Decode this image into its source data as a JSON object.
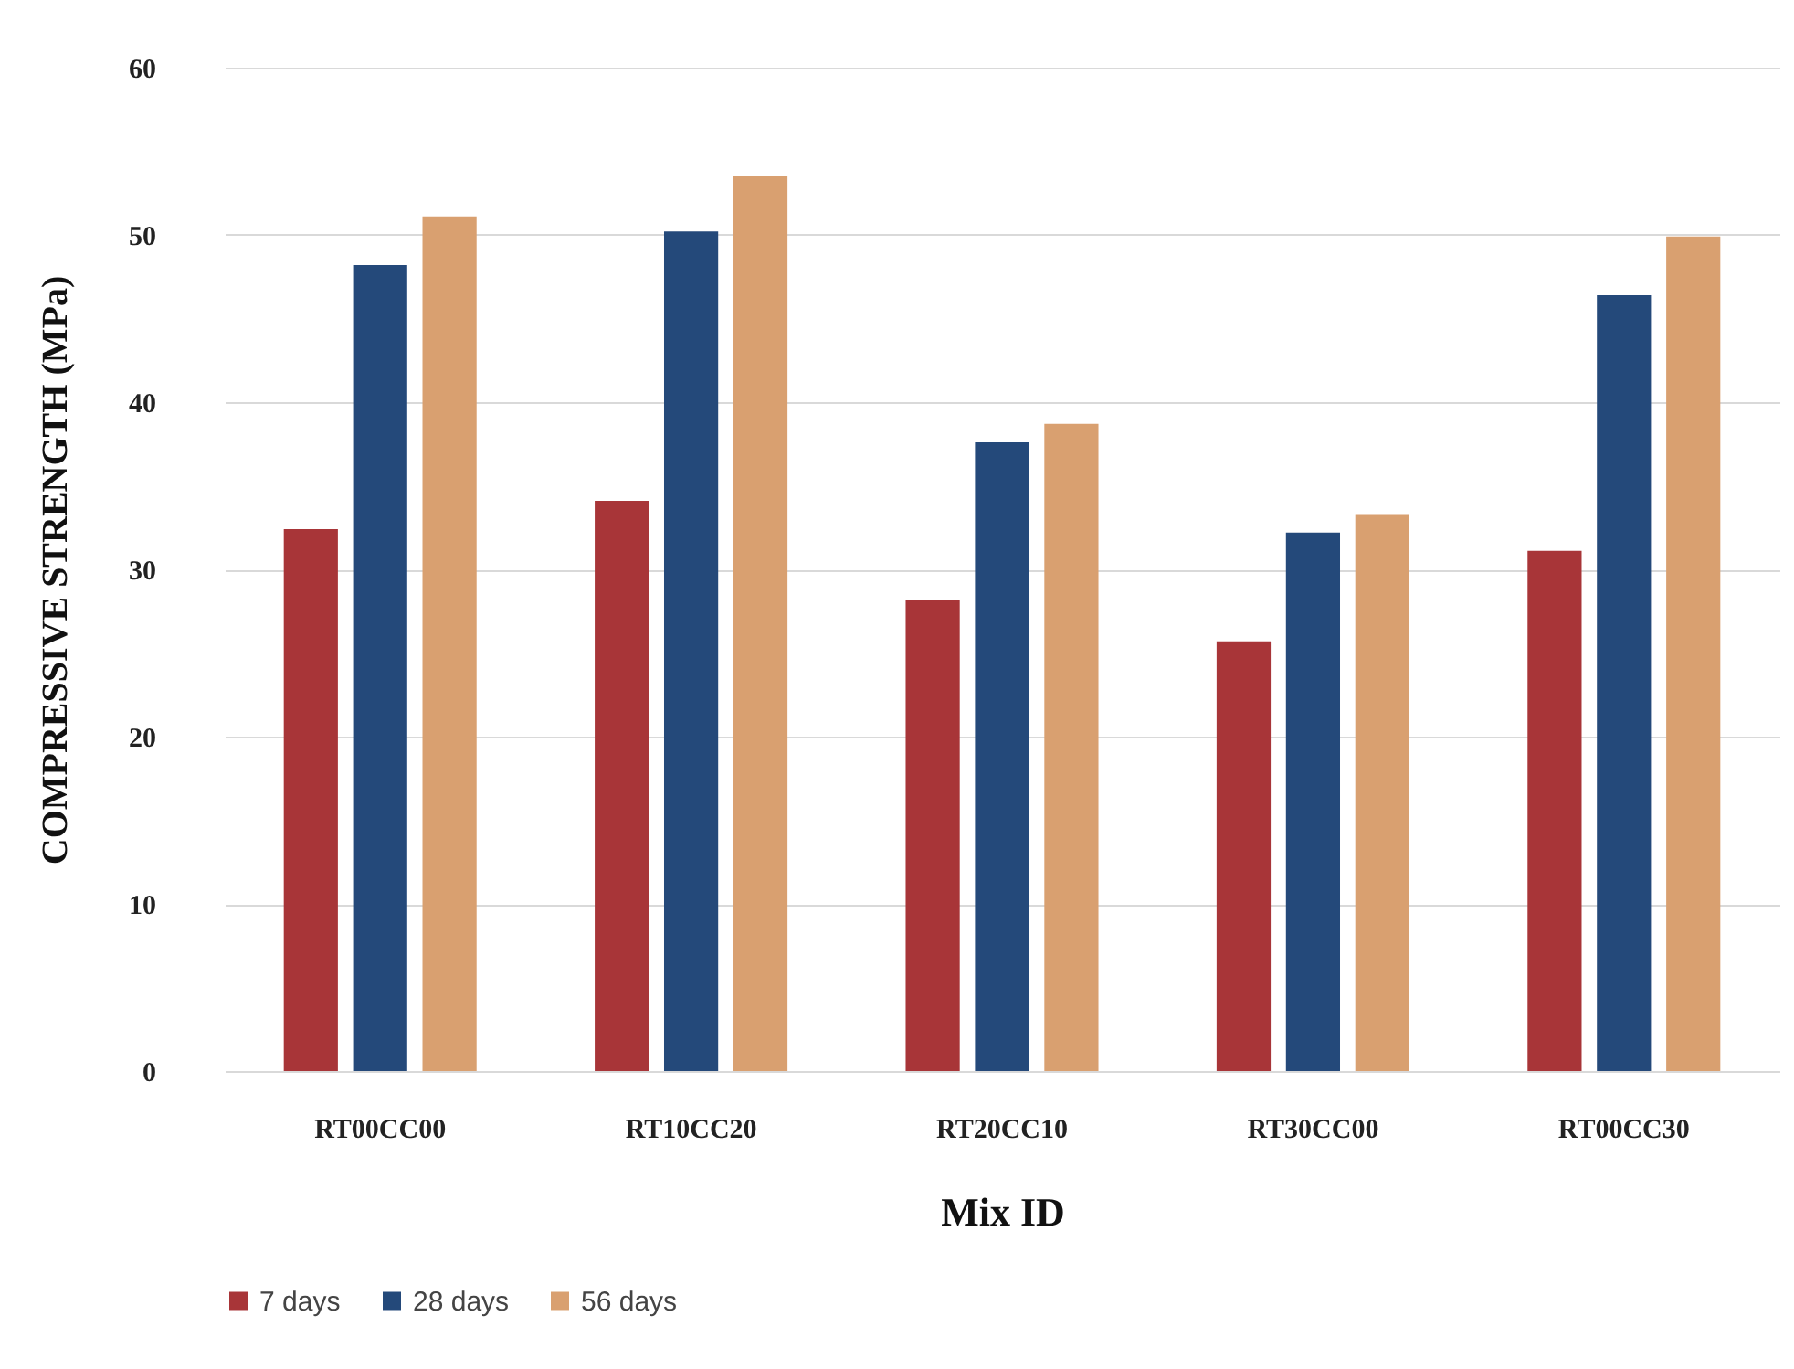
{
  "chart_data": {
    "type": "bar",
    "xlabel": "Mix ID",
    "ylabel": "COMPRESSIVE STRENGTH (MPa)",
    "categories": [
      "RT00CC00",
      "RT10CC20",
      "RT20CC10",
      "RT30CC00",
      "RT00CC30"
    ],
    "series": [
      {
        "name": "7 days",
        "color": "#a83538",
        "values": [
          32.4,
          34.1,
          28.2,
          25.7,
          31.1
        ]
      },
      {
        "name": "28 days",
        "color": "#24497a",
        "values": [
          48.2,
          50.2,
          37.6,
          32.2,
          46.4
        ]
      },
      {
        "name": "56 days",
        "color": "#d9a070",
        "values": [
          51.1,
          53.5,
          38.7,
          33.3,
          49.9
        ]
      }
    ],
    "ylim": [
      0,
      60
    ],
    "yticks": [
      0,
      10,
      20,
      30,
      40,
      50,
      60
    ],
    "grid": "y",
    "legend": "bottom"
  }
}
